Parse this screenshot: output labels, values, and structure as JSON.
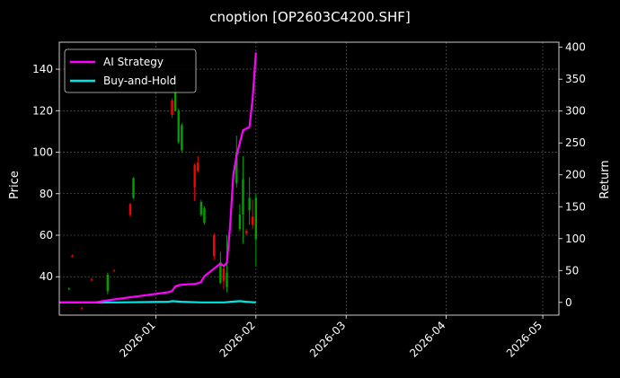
{
  "chart_data": {
    "type": "candlestick+line",
    "title": "cnoption [OP2603C4200.SHF]",
    "ylabel_left": "Price",
    "ylabel_right": "Return",
    "xlabel": "",
    "grid": true,
    "legend_position": "upper-left",
    "x_range": [
      "2025-12-02",
      "2026-05-06"
    ],
    "ylim_left": [
      21.5,
      153
    ],
    "ylim_right": [
      -20,
      408
    ],
    "x_ticks": [
      "2026-01-01",
      "2026-02-01",
      "2026-03-01",
      "2026-04-01",
      "2026-05-01"
    ],
    "x_tick_labels": [
      "2026-01",
      "2026-02",
      "2026-03",
      "2026-04",
      "2026-05"
    ],
    "y_left_ticks": [
      40,
      60,
      80,
      100,
      120,
      140
    ],
    "y_right_ticks": [
      0,
      50,
      100,
      150,
      200,
      250,
      300,
      350,
      400
    ],
    "colors": {
      "up": "#00a000",
      "down": "#ff0000",
      "background": "#000000",
      "grid": "#666666"
    },
    "candles": [
      {
        "date": "2025-12-05",
        "open": 34.0,
        "high": 34.8,
        "low": 33.6,
        "close": 34.3
      },
      {
        "date": "2025-12-06",
        "open": 50.0,
        "high": 50.8,
        "low": 49.4,
        "close": 49.6
      },
      {
        "date": "2025-12-09",
        "open": 24.8,
        "high": 25.6,
        "low": 24.2,
        "close": 24.4
      },
      {
        "date": "2025-12-12",
        "open": 38.6,
        "high": 39.4,
        "low": 38.0,
        "close": 38.2
      },
      {
        "date": "2025-12-17",
        "open": 33.0,
        "high": 42.0,
        "low": 31.5,
        "close": 41.0
      },
      {
        "date": "2025-12-19",
        "open": 43.0,
        "high": 43.6,
        "low": 42.6,
        "close": 42.8
      },
      {
        "date": "2025-12-24",
        "open": 75.0,
        "high": 75.5,
        "low": 69.0,
        "close": 70.0
      },
      {
        "date": "2025-12-25",
        "open": 78.0,
        "high": 88.0,
        "low": 77.5,
        "close": 87.5
      },
      {
        "date": "2026-01-06",
        "open": 125.0,
        "high": 126.0,
        "low": 116.5,
        "close": 118.0
      },
      {
        "date": "2026-01-07",
        "open": 120.0,
        "high": 137.0,
        "low": 119.5,
        "close": 132.0
      },
      {
        "date": "2026-01-08",
        "open": 105.0,
        "high": 121.0,
        "low": 104.0,
        "close": 120.0
      },
      {
        "date": "2026-01-09",
        "open": 101.0,
        "high": 114.0,
        "low": 100.0,
        "close": 113.0
      },
      {
        "date": "2026-01-13",
        "open": 94.0,
        "high": 94.5,
        "low": 76.5,
        "close": 83.0
      },
      {
        "date": "2026-01-14",
        "open": 95.0,
        "high": 98.0,
        "low": 90.0,
        "close": 91.0
      },
      {
        "date": "2026-01-15",
        "open": 70.0,
        "high": 77.0,
        "low": 69.0,
        "close": 76.0
      },
      {
        "date": "2026-01-16",
        "open": 66.0,
        "high": 74.0,
        "low": 65.0,
        "close": 73.0
      },
      {
        "date": "2026-01-19",
        "open": 60.0,
        "high": 61.0,
        "low": 48.0,
        "close": 50.0
      },
      {
        "date": "2026-01-21",
        "open": 37.0,
        "high": 52.0,
        "low": 36.5,
        "close": 47.0
      },
      {
        "date": "2026-01-22",
        "open": 44.0,
        "high": 44.5,
        "low": 34.0,
        "close": 38.0
      },
      {
        "date": "2026-01-23",
        "open": 35.0,
        "high": 60.0,
        "low": 32.5,
        "close": 42.0
      },
      {
        "date": "2026-01-26",
        "open": 85.0,
        "high": 108.0,
        "low": 83.0,
        "close": 100.0
      },
      {
        "date": "2026-01-27",
        "open": 63.0,
        "high": 75.0,
        "low": 62.0,
        "close": 70.0
      },
      {
        "date": "2026-01-28",
        "open": 70.0,
        "high": 98.0,
        "low": 56.0,
        "close": 87.0
      },
      {
        "date": "2026-01-29",
        "open": 62.0,
        "high": 63.0,
        "low": 60.0,
        "close": 61.0
      },
      {
        "date": "2026-01-30",
        "open": 72.0,
        "high": 88.0,
        "low": 65.0,
        "close": 78.0
      },
      {
        "date": "2026-01-31",
        "open": 69.0,
        "high": 77.0,
        "low": 63.0,
        "close": 65.0
      },
      {
        "date": "2026-02-01",
        "open": 58.0,
        "high": 80.0,
        "low": 45.0,
        "close": 78.0
      }
    ],
    "series": [
      {
        "name": "AI Strategy",
        "color": "#ff00ff",
        "x": [
          "2025-12-02",
          "2025-12-08",
          "2025-12-13",
          "2025-12-18",
          "2025-12-21",
          "2025-12-27",
          "2026-01-05",
          "2026-01-06",
          "2026-01-07",
          "2026-01-08",
          "2026-01-10",
          "2026-01-13",
          "2026-01-14",
          "2026-01-15",
          "2026-01-16",
          "2026-01-17",
          "2026-01-21",
          "2026-01-22",
          "2026-01-23",
          "2026-01-24",
          "2026-01-25",
          "2026-01-26",
          "2026-01-28",
          "2026-01-30",
          "2026-01-31",
          "2026-02-01"
        ],
        "values": [
          0,
          0,
          0,
          4,
          6,
          10,
          16,
          18,
          25,
          27,
          28,
          29,
          30,
          32,
          41,
          45,
          61,
          57,
          62,
          120,
          200,
          230,
          270,
          275,
          320,
          392
        ]
      },
      {
        "name": "Buy-and-Hold",
        "color": "#00e5e5",
        "x": [
          "2025-12-02",
          "2025-12-20",
          "2026-01-05",
          "2026-01-06",
          "2026-01-09",
          "2026-01-15",
          "2026-01-22",
          "2026-01-27",
          "2026-01-29",
          "2026-02-01"
        ],
        "values": [
          0,
          0,
          1,
          2,
          1,
          0,
          0,
          2,
          1,
          0
        ]
      }
    ]
  }
}
